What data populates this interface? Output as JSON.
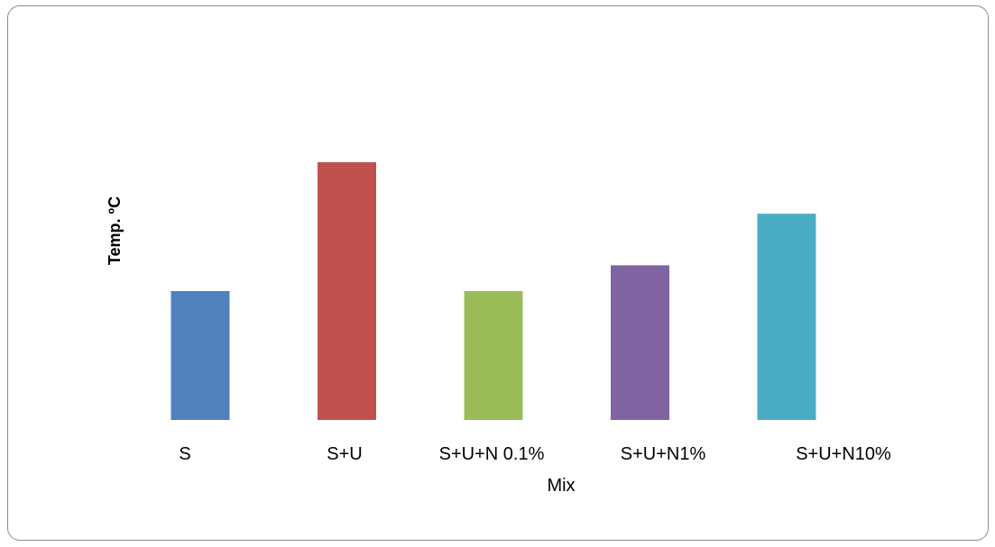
{
  "chart_data": {
    "type": "bar",
    "title": "",
    "xlabel": "Mix",
    "ylabel": "Temp. ºC",
    "ylim": [
      0,
      100
    ],
    "grid": false,
    "legend": "none",
    "categories": [
      "S",
      "S+U",
      "S+U+N 0.1%",
      "S+U+N1%",
      "S+U+N10%"
    ],
    "values": [
      50,
      100,
      50,
      60,
      80
    ],
    "colors": [
      "#4f81bd",
      "#c0504d",
      "#9bbb59",
      "#8064a2",
      "#4bacc6"
    ]
  }
}
